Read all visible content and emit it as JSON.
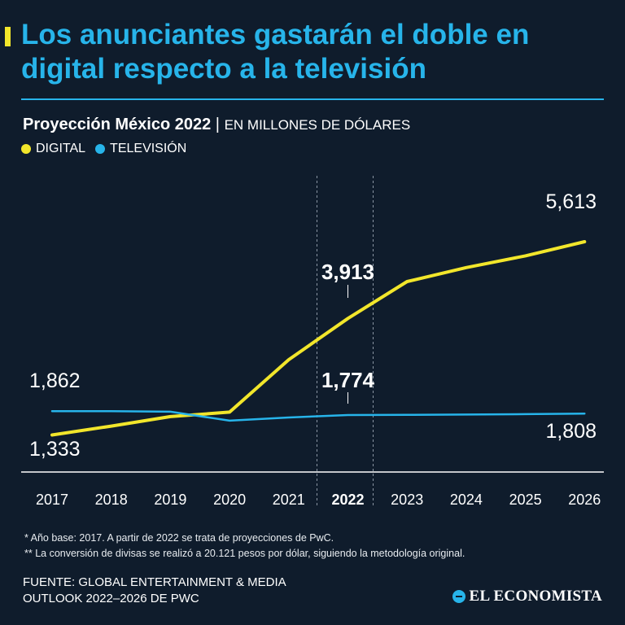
{
  "title": "Los anunciantes gastarán el doble en digital respecto a la televisión",
  "subtitle_main": "Proyección México 2022",
  "subtitle_sep": "|",
  "subtitle_unit": "EN MILLONES DE DÓLARES",
  "colors": {
    "accent": "#f2e62b",
    "title": "#27b4ea",
    "background": "#0f1c2c",
    "digital": "#f2e62b",
    "tv": "#27b4ea"
  },
  "chart_data": {
    "type": "line",
    "x": [
      "2017",
      "2018",
      "2019",
      "2020",
      "2021",
      "2022",
      "2023",
      "2024",
      "2025",
      "2026"
    ],
    "highlight_x": "2022",
    "series": [
      {
        "name": "DIGITAL",
        "color": "#f2e62b",
        "values": [
          1333,
          1530,
          1740,
          1840,
          3000,
          3913,
          4730,
          5040,
          5300,
          5613
        ]
      },
      {
        "name": "TELEVISIÓN",
        "color": "#27b4ea",
        "values": [
          1862,
          1860,
          1848,
          1650,
          1720,
          1774,
          1778,
          1785,
          1795,
          1808
        ]
      }
    ],
    "annotations": [
      {
        "text": "1,862",
        "series": "TELEVISIÓN",
        "x": "2017",
        "bold": false
      },
      {
        "text": "1,333",
        "series": "DIGITAL",
        "x": "2017",
        "bold": false
      },
      {
        "text": "3,913",
        "series": "DIGITAL",
        "x": "2022",
        "bold": true
      },
      {
        "text": "1,774",
        "series": "TELEVISIÓN",
        "x": "2022",
        "bold": true
      },
      {
        "text": "5,613",
        "series": "DIGITAL",
        "x": "2026",
        "bold": false
      },
      {
        "text": "1,808",
        "series": "TELEVISIÓN",
        "x": "2026",
        "bold": false
      }
    ],
    "ylim": [
      0,
      6000
    ],
    "xlabel": "",
    "ylabel": ""
  },
  "notes": [
    "* Año base: 2017. A partir de 2022 se trata de proyecciones de PwC.",
    "** La conversión de divisas se realizó a 20.121 pesos por dólar, siguiendo la metodología original."
  ],
  "source_line1": "FUENTE: GLOBAL ENTERTAINMENT & MEDIA",
  "source_line2": "OUTLOOK 2022–2026 DE PWC",
  "brand": "EL ECONOMISTA"
}
